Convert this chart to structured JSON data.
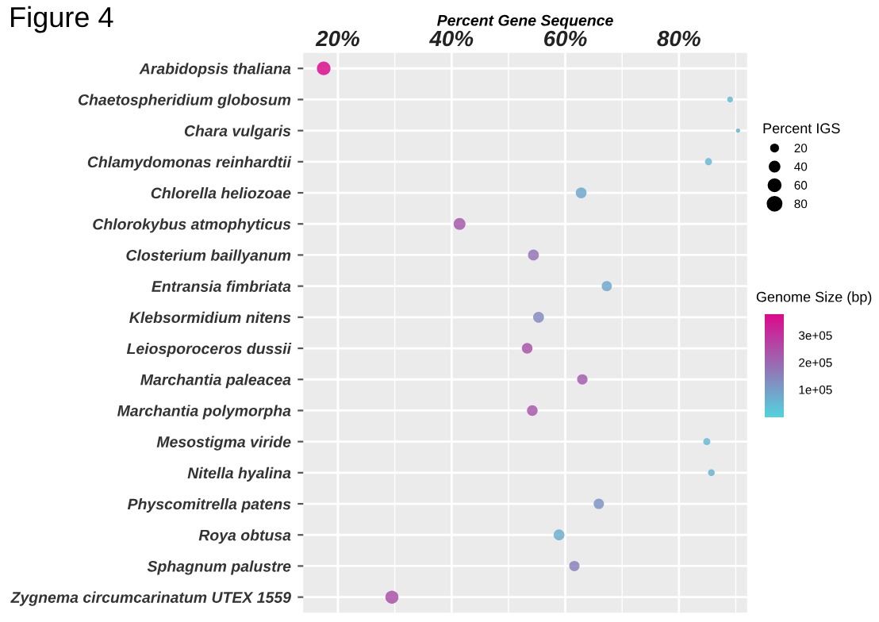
{
  "chart_data": {
    "type": "bubble",
    "title": "Figure 4",
    "xlabel": "Percent Gene Sequence",
    "legend_title": "Percent IGS",
    "clabel": "Genome Size (bp)",
    "orientation": "horizontal",
    "categories": [
      "Arabidopsis thaliana",
      "Chaetospheridium globosum",
      "Chara vulgaris",
      "Chlamydomonas reinhardtii",
      "Chlorella heliozoae",
      "Chlorokybus atmophyticus",
      "Closterium baillyanum",
      "Entransia fimbriata",
      "Klebsormidium nitens",
      "Leiosporoceros dussii",
      "Marchantia paleacea",
      "Marchantia polymorpha",
      "Mesostigma viride",
      "Nitella hyalina",
      "Physcomitrella patens",
      "Roya obtusa",
      "Sphagnum palustre",
      "Zygnema circumcarinatum UTEX 1559"
    ],
    "values": [
      17.5,
      89.0,
      90.4,
      85.2,
      62.8,
      41.4,
      54.4,
      67.3,
      55.3,
      53.3,
      63.0,
      54.2,
      84.9,
      85.7,
      65.9,
      58.9,
      61.6,
      29.5
    ],
    "sizes": [
      82,
      15,
      8,
      22,
      52,
      62,
      52,
      45,
      52,
      50,
      47,
      50,
      22,
      20,
      47,
      52,
      47,
      75
    ],
    "size_legend": [
      20,
      40,
      60,
      80
    ],
    "cvalues": [
      370000,
      50000,
      70000,
      50000,
      80000,
      230000,
      180000,
      80000,
      135000,
      240000,
      220000,
      230000,
      50000,
      60000,
      120000,
      70000,
      150000,
      240000
    ],
    "clim": [
      0,
      378000
    ],
    "cticks": [
      {
        "value": 100000,
        "label": "1e+05"
      },
      {
        "value": 200000,
        "label": "2e+05"
      },
      {
        "value": 300000,
        "label": "3e+05"
      }
    ],
    "xlim": [
      13.9,
      92
    ],
    "xticks": [
      {
        "value": 20,
        "label": "20%"
      },
      {
        "value": 40,
        "label": "40%"
      },
      {
        "value": 60,
        "label": "60%"
      },
      {
        "value": 80,
        "label": "80%"
      }
    ],
    "grid": true
  }
}
